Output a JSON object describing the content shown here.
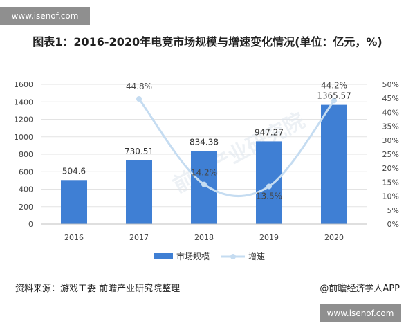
{
  "watermark_text": "www.isenof.com",
  "chart_data": {
    "type": "bar",
    "title": "图表1：2016-2020年电竞市场规模与增速变化情况(单位：亿元，%)",
    "categories": [
      "2016",
      "2017",
      "2018",
      "2019",
      "2020"
    ],
    "series": [
      {
        "name": "市场规模",
        "type": "bar",
        "axis": "left",
        "values": [
          504.6,
          730.51,
          834.38,
          947.27,
          1365.57
        ],
        "labels": [
          "504.6",
          "730.51",
          "834.38",
          "947.27",
          "1365.57"
        ],
        "color": "#3f7fd4"
      },
      {
        "name": "增速",
        "type": "line",
        "axis": "right",
        "values": [
          null,
          44.8,
          14.2,
          13.5,
          44.2
        ],
        "labels": [
          "",
          "44.8%",
          "14.2%",
          "13.5%",
          "44.2%"
        ],
        "color": "#c5dcf1"
      }
    ],
    "ylim_left": [
      0,
      1600
    ],
    "left_ticks": [
      "0",
      "200",
      "400",
      "600",
      "800",
      "1000",
      "1200",
      "1400",
      "1600"
    ],
    "ylim_right": [
      0,
      50
    ],
    "right_ticks": [
      "0%",
      "5%",
      "10%",
      "15%",
      "20%",
      "25%",
      "30%",
      "35%",
      "40%",
      "45%",
      "50%"
    ],
    "grid": true,
    "legend_position": "bottom-center",
    "watermark": "前瞻产业研究院"
  },
  "footer": {
    "source": "资料来源：游戏工委 前瞻产业研究院整理",
    "credit": "@前瞻经济学人APP"
  }
}
